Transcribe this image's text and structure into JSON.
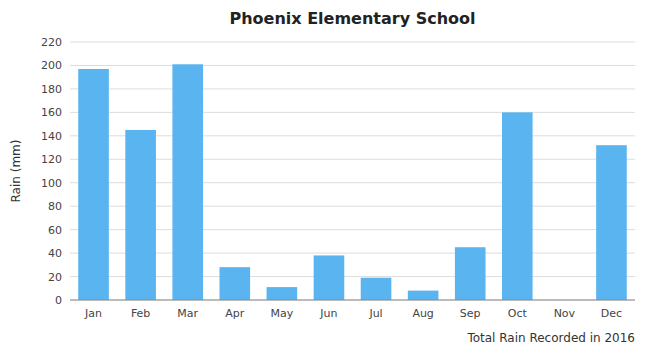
{
  "chart_data": {
    "type": "bar",
    "title": "Phoenix Elementary School",
    "xlabel": "Total Rain Recorded in 2016",
    "ylabel": "Rain (mm)",
    "categories": [
      "Jan",
      "Feb",
      "Mar",
      "Apr",
      "May",
      "Jun",
      "Jul",
      "Aug",
      "Sep",
      "Oct",
      "Nov",
      "Dec"
    ],
    "values": [
      197,
      145,
      201,
      28,
      11,
      38,
      19,
      8,
      45,
      160,
      0,
      132
    ],
    "color": "#5ab4f0",
    "ylim": [
      0,
      220
    ],
    "yticks": [
      0,
      20,
      40,
      60,
      80,
      100,
      120,
      140,
      160,
      180,
      200,
      220
    ],
    "grid": true
  }
}
